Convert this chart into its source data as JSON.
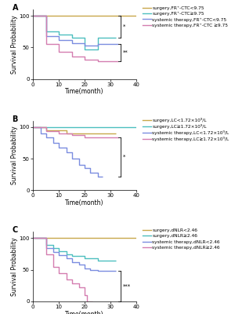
{
  "panels": [
    {
      "label": "A",
      "lines": [
        {
          "name": "surgery,FR⁺-CTC<9.75",
          "color": "#c8a84b",
          "x": [
            0,
            40
          ],
          "y": [
            100,
            100
          ]
        },
        {
          "name": "surgery,FR⁺-CTC≥9.75",
          "color": "#4dbfbf",
          "x": [
            0,
            5,
            5,
            10,
            10,
            15,
            15,
            20,
            20,
            25,
            25,
            32
          ],
          "y": [
            100,
            100,
            75,
            75,
            70,
            70,
            65,
            65,
            47,
            47,
            65,
            65
          ]
        },
        {
          "name": "systemic therapy,FR⁺-CTC<9.75",
          "color": "#7b8de0",
          "x": [
            0,
            5,
            5,
            10,
            10,
            15,
            15,
            20,
            20,
            25,
            25,
            33
          ],
          "y": [
            100,
            100,
            68,
            68,
            62,
            62,
            57,
            57,
            53,
            53,
            55,
            55
          ]
        },
        {
          "name": "systemic therapy,FR⁺-CTC ≥9.75",
          "color": "#d47db0",
          "x": [
            0,
            5,
            5,
            10,
            10,
            15,
            15,
            20,
            20,
            25,
            25,
            33
          ],
          "y": [
            100,
            100,
            55,
            55,
            43,
            43,
            35,
            35,
            30,
            30,
            28,
            28
          ]
        }
      ],
      "sig_brackets": [
        {
          "y_top": 100,
          "y_bot": 65,
          "symbol": "*",
          "x": 33
        },
        {
          "y_top": 55,
          "y_bot": 28,
          "symbol": "**",
          "x": 33
        }
      ]
    },
    {
      "label": "B",
      "lines": [
        {
          "name": "surgery,LC<1.72×10⁹/L",
          "color": "#c8a84b",
          "x": [
            0,
            5,
            5,
            13,
            13,
            32
          ],
          "y": [
            100,
            100,
            95,
            95,
            90,
            90
          ]
        },
        {
          "name": "surgery,LC≥1.72×10⁹/L",
          "color": "#4dbfbf",
          "x": [
            0,
            40
          ],
          "y": [
            100,
            100
          ]
        },
        {
          "name": "systemic therapy,LC<1.72×10⁹/L",
          "color": "#7b8de0",
          "x": [
            0,
            3,
            3,
            5,
            5,
            8,
            8,
            10,
            10,
            13,
            13,
            15,
            15,
            18,
            18,
            20,
            20,
            22,
            22,
            25,
            25,
            27
          ],
          "y": [
            100,
            100,
            90,
            90,
            83,
            83,
            75,
            75,
            68,
            68,
            60,
            60,
            50,
            50,
            40,
            40,
            35,
            35,
            28,
            28,
            22,
            22
          ]
        },
        {
          "name": "systemic therapy,LC≥1.72×10⁹/L",
          "color": "#d47db0",
          "x": [
            0,
            5,
            5,
            10,
            10,
            15,
            15,
            20,
            20,
            33
          ],
          "y": [
            100,
            100,
            93,
            93,
            90,
            90,
            87,
            87,
            83,
            83
          ]
        }
      ],
      "sig_brackets": [
        {
          "y_top": 22,
          "y_bot": 83,
          "symbol": "*",
          "x": 33
        }
      ]
    },
    {
      "label": "C",
      "lines": [
        {
          "name": "surgery,dNLR<2.46",
          "color": "#c8a84b",
          "x": [
            0,
            40
          ],
          "y": [
            100,
            100
          ]
        },
        {
          "name": "surgery,dNLR≥2.46",
          "color": "#4dbfbf",
          "x": [
            0,
            5,
            5,
            8,
            8,
            10,
            10,
            13,
            13,
            15,
            15,
            20,
            20,
            25,
            25,
            32
          ],
          "y": [
            100,
            100,
            90,
            90,
            85,
            85,
            80,
            80,
            75,
            75,
            72,
            72,
            68,
            68,
            65,
            65
          ]
        },
        {
          "name": "systemic therapy,dNLR<2.46",
          "color": "#7b8de0",
          "x": [
            0,
            5,
            5,
            8,
            8,
            10,
            10,
            13,
            13,
            15,
            15,
            18,
            18,
            20,
            20,
            22,
            22,
            25,
            25,
            32
          ],
          "y": [
            100,
            100,
            85,
            85,
            78,
            78,
            73,
            73,
            68,
            68,
            62,
            62,
            58,
            58,
            52,
            52,
            50,
            50,
            48,
            48
          ]
        },
        {
          "name": "systemic therapy,dNLR≥2.46",
          "color": "#d47db0",
          "x": [
            0,
            5,
            5,
            8,
            8,
            10,
            10,
            13,
            13,
            15,
            15,
            18,
            18,
            20,
            20,
            21,
            21,
            23
          ],
          "y": [
            100,
            100,
            75,
            75,
            55,
            55,
            45,
            45,
            35,
            35,
            28,
            28,
            22,
            22,
            10,
            10,
            0,
            0
          ]
        }
      ],
      "sig_brackets": [
        {
          "y_top": 48,
          "y_bot": 0,
          "symbol": "***",
          "x": 33
        }
      ]
    }
  ],
  "xlabel": "Time(month)",
  "ylabel": "Survival Probability",
  "xlim": [
    0,
    40
  ],
  "ylim": [
    0,
    110
  ],
  "xticks": [
    0,
    10,
    20,
    30,
    40
  ],
  "yticks": [
    0,
    50,
    100
  ],
  "bg_color": "#ffffff",
  "linewidth": 1.0,
  "fontsize_label": 5.5,
  "fontsize_tick": 5,
  "fontsize_legend": 4.2,
  "fontsize_panel_label": 7
}
